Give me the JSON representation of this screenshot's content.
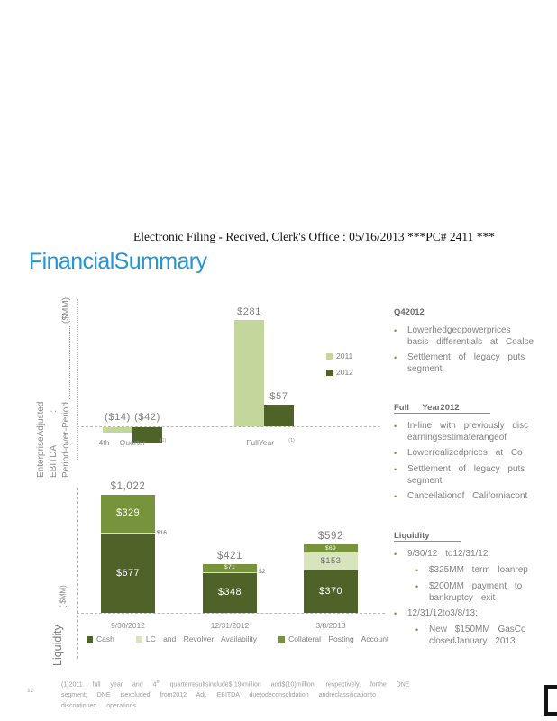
{
  "header": {
    "filing_line": "Electronic Filing - Recived, Clerk's Office :  05/16/2013 ***PC# 2411 ***"
  },
  "title": "FinancialSummary",
  "colors": {
    "accent_blue": "#2595d3",
    "green_light_2011": "#c3d69b",
    "green_dark_2012": "#4f6228",
    "green_pale_lc": "#d7e4bc",
    "green_medium_collateral": "#77933c",
    "text_gray": "#7f7f7f"
  },
  "chart_data": [
    {
      "id": "ebitda",
      "type": "bar",
      "ylabel_lines": [
        "EnterpriseAdjusted",
        "EBITDA :",
        "Period-over-Period"
      ],
      "unit": "($MM)",
      "categories": [
        "4th Quarter",
        "FullYear"
      ],
      "category_footnote": "(1)",
      "legend_position": "right",
      "grid": false,
      "series": [
        {
          "name": "2011",
          "color": "#c3d69b",
          "values": [
            -14,
            281
          ],
          "labels": [
            "($14)",
            "$281"
          ]
        },
        {
          "name": "2012",
          "color": "#4f6228",
          "values": [
            -42,
            57
          ],
          "labels": [
            "($42)",
            "$57"
          ]
        }
      ]
    },
    {
      "id": "liquidity",
      "type": "stacked-bar",
      "ylabel": "Liquidity",
      "unit": "( $MM)",
      "categories": [
        "9/30/2012",
        "12/31/2012",
        "3/8/2013"
      ],
      "totals": [
        1022,
        421,
        592
      ],
      "total_labels": [
        "$1,022",
        "$421",
        "$592"
      ],
      "legend_position": "bottom",
      "grid": false,
      "series": [
        {
          "name": "Cash",
          "color": "#4f6228",
          "label_color": "#ffffff",
          "values": [
            677,
            348,
            370
          ],
          "labels": [
            "$677",
            "$348",
            "$370"
          ]
        },
        {
          "name": "LC and Revolver Availability",
          "color": "#d7e4bc",
          "label_color": "#6d6d6d",
          "values": [
            16,
            2,
            153
          ],
          "labels": [
            "$16",
            "$2",
            "$153"
          ]
        },
        {
          "name": "Collateral Posting Account",
          "color": "#77933c",
          "label_color": "#ffffff",
          "values": [
            329,
            71,
            69
          ],
          "labels": [
            "$329",
            "$71",
            "$69"
          ]
        }
      ]
    }
  ],
  "right_panel": {
    "sections": [
      {
        "heading": "Q42012",
        "underline": false,
        "items": [
          {
            "level": 1,
            "lines": [
              "Lowerhedgedpowerprices",
              "basis differentials at Coalse"
            ]
          },
          {
            "level": 1,
            "lines": [
              "Settlement of legacy puts",
              "segment"
            ]
          }
        ]
      },
      {
        "heading": "Full Year2012",
        "underline": true,
        "items": [
          {
            "level": 1,
            "lines": [
              "In-line with previously disc",
              "earningsestimaterangeof"
            ]
          },
          {
            "level": 1,
            "lines": [
              "Lowerrealizedprices at Co"
            ]
          },
          {
            "level": 1,
            "lines": [
              "Settlement of legacy puts",
              "segment"
            ]
          },
          {
            "level": 1,
            "lines": [
              "Cancellationof Californiacont"
            ]
          }
        ]
      },
      {
        "heading": "Liquidity",
        "underline": true,
        "items": [
          {
            "level": 1,
            "lines": [
              "9/30/12 to12/31/12:"
            ]
          },
          {
            "level": 2,
            "lines": [
              "$325MM term loanrep"
            ]
          },
          {
            "level": 2,
            "lines": [
              "$200MM payment to",
              "bankruptcy exit"
            ]
          },
          {
            "level": 1,
            "lines": [
              "12/31/12to3/8/13:"
            ]
          },
          {
            "level": 2,
            "lines": [
              "New $150MM GasCo",
              "closedJanuary 2013"
            ]
          }
        ]
      }
    ]
  },
  "footer": {
    "page_number": "12",
    "footnote": {
      "line1_pre": "(1)2011 full year and 4",
      "line1_sup": "th",
      "line1_post": " quarterresultsinclude$(19)million and$(10)million, respectively, forthe DNE",
      "line2": "segment; DNE isexcluded from2012 Adj. EBITDA duetodeconsolidation andreclassificationto",
      "line3": "discontinued operations"
    }
  }
}
